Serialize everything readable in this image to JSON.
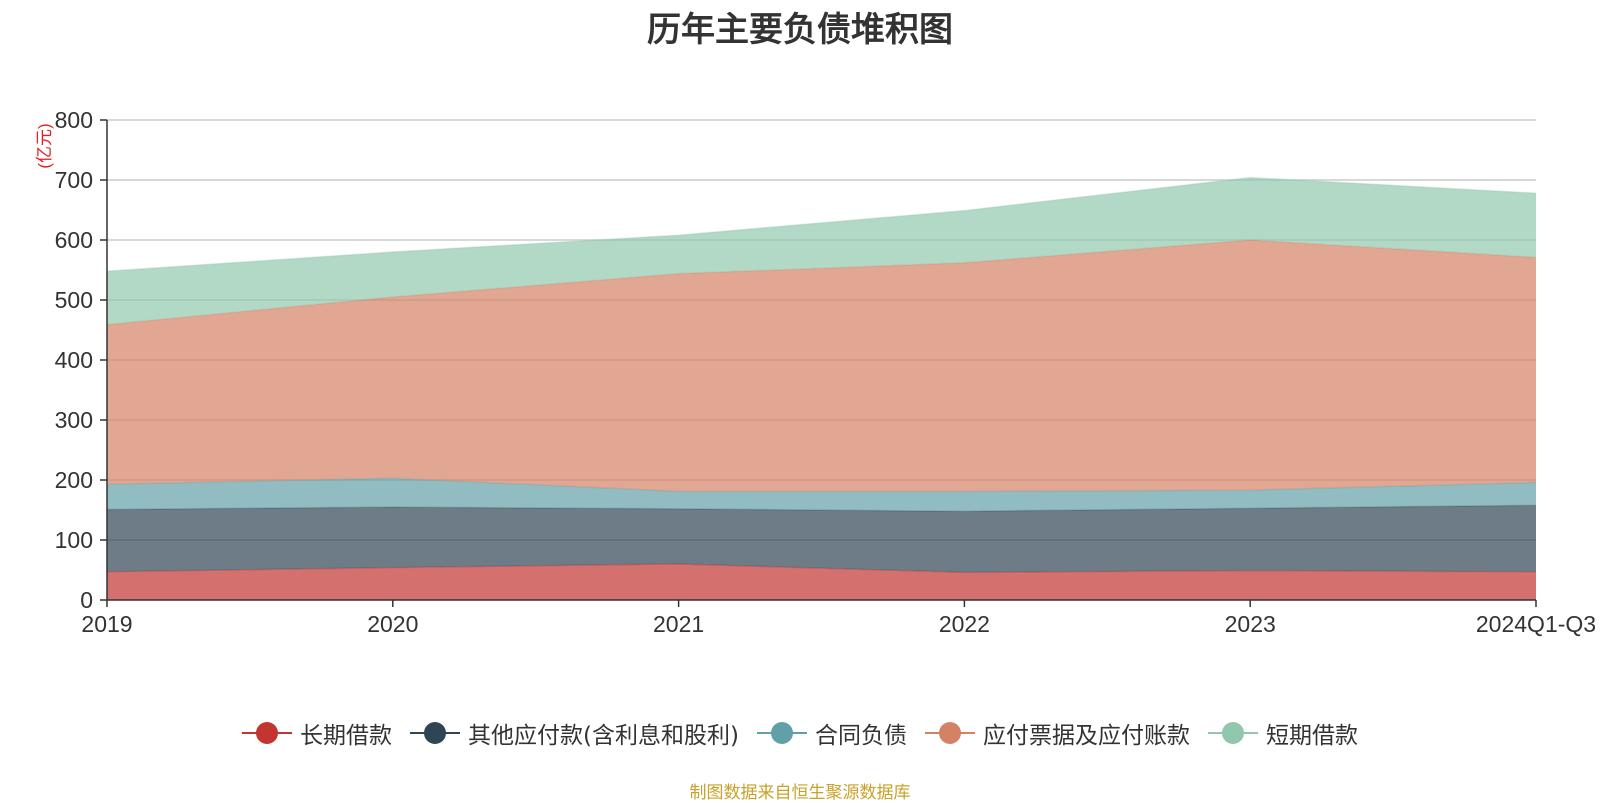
{
  "chart_data": {
    "type": "area",
    "stacked": true,
    "title": "历年主要负债堆积图",
    "ylabel": "(亿元)",
    "xlabel": "",
    "ylim": [
      0,
      800
    ],
    "yticks": [
      0,
      100,
      200,
      300,
      400,
      500,
      600,
      700,
      800
    ],
    "categories": [
      "2019",
      "2020",
      "2021",
      "2022",
      "2023",
      "2024Q1-Q3"
    ],
    "grid": true,
    "legend_position": "bottom",
    "series": [
      {
        "name": "长期借款",
        "color": "#c23531",
        "values": [
          47,
          54,
          60,
          46,
          49,
          47
        ]
      },
      {
        "name": "其他应付款(含利息和股利)",
        "color": "#2f4554",
        "values": [
          104,
          101,
          92,
          102,
          104,
          111
        ]
      },
      {
        "name": "合同负债",
        "color": "#61a0a8",
        "values": [
          42,
          48,
          29,
          33,
          30,
          38
        ]
      },
      {
        "name": "应付票据及应付账款",
        "color": "#d48265",
        "values": [
          266,
          302,
          363,
          381,
          417,
          375
        ]
      },
      {
        "name": "短期借款",
        "color": "#91c7ae",
        "values": [
          89,
          75,
          64,
          87,
          104,
          107
        ]
      }
    ],
    "source": "制图数据来自恒生聚源数据库"
  }
}
